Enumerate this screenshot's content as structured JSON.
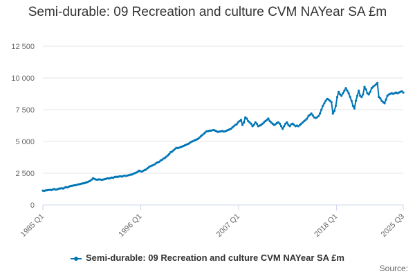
{
  "chart_data": {
    "type": "line",
    "title": "Semi-durable: 09 Recreation and culture CVM NAYear SA £m",
    "xlabel": "",
    "ylabel": "",
    "x_start": "1985 Q1",
    "x_end": "2025 Q3",
    "x_ticks": [
      "1985 Q1",
      "1996 Q1",
      "2007 Q1",
      "2018 Q1",
      "2025 Q3"
    ],
    "y_ticks": [
      "0",
      "2 500",
      "5 000",
      "7 500",
      "10 000",
      "12 500"
    ],
    "ylim": [
      0,
      12500
    ],
    "grid": true,
    "legend_position": "bottom",
    "series": [
      {
        "name": "Semi-durable: 09 Recreation and culture CVM NAYear SA £m",
        "color": "#0076b6",
        "values": [
          1130,
          1110,
          1150,
          1160,
          1180,
          1200,
          1170,
          1220,
          1250,
          1200,
          1230,
          1270,
          1300,
          1320,
          1290,
          1350,
          1400,
          1380,
          1430,
          1480,
          1500,
          1520,
          1550,
          1560,
          1600,
          1620,
          1650,
          1680,
          1700,
          1720,
          1760,
          1800,
          1850,
          1900,
          2000,
          2100,
          2050,
          2000,
          1980,
          2020,
          2000,
          1980,
          2000,
          2030,
          2050,
          2100,
          2080,
          2120,
          2150,
          2130,
          2200,
          2220,
          2200,
          2240,
          2260,
          2230,
          2280,
          2300,
          2280,
          2320,
          2350,
          2380,
          2400,
          2450,
          2500,
          2550,
          2600,
          2700,
          2650,
          2620,
          2700,
          2750,
          2800,
          2900,
          3000,
          3050,
          3100,
          3150,
          3200,
          3300,
          3350,
          3400,
          3500,
          3550,
          3650,
          3700,
          3800,
          3900,
          4000,
          4150,
          4200,
          4300,
          4400,
          4500,
          4480,
          4520,
          4550,
          4600,
          4650,
          4700,
          4750,
          4800,
          4850,
          4950,
          5000,
          5050,
          5100,
          5150,
          5200,
          5300,
          5400,
          5500,
          5600,
          5700,
          5800,
          5800,
          5850,
          5850,
          5880,
          5900,
          5850,
          5800,
          5750,
          5780,
          5800,
          5820,
          5780,
          5800,
          5850,
          5900,
          5950,
          6000,
          6100,
          6200,
          6300,
          6350,
          6500,
          6600,
          6700,
          6300,
          6500,
          6900,
          6800,
          6600,
          6500,
          6400,
          6200,
          6300,
          6500,
          6400,
          6200,
          6250,
          6300,
          6400,
          6500,
          6600,
          6700,
          6800,
          6600,
          6500,
          6400,
          6300,
          6350,
          6450,
          6500,
          6400,
          6200,
          6000,
          6200,
          6400,
          6500,
          6300,
          6200,
          6350,
          6400,
          6300,
          6200,
          6250,
          6200,
          6300,
          6400,
          6500,
          6600,
          6700,
          6800,
          7000,
          7100,
          7200,
          7050,
          6900,
          6850,
          6900,
          7000,
          7200,
          7500,
          7800,
          8000,
          8200,
          8350,
          8300,
          8200,
          8100,
          7200,
          7400,
          7800,
          8500,
          8900,
          8700,
          8600,
          8800,
          9000,
          9200,
          9000,
          8800,
          8500,
          8200,
          7800,
          7600,
          8200,
          8600,
          9000,
          8600,
          8500,
          8700,
          9300,
          9100,
          8800,
          8700,
          8900,
          9200,
          9300,
          9400,
          9500,
          9600,
          8500,
          8400,
          8200,
          8100,
          8000,
          8300,
          8600,
          8700,
          8750,
          8800,
          8750,
          8800,
          8850,
          8800,
          8850,
          8900,
          8950,
          8850
        ]
      }
    ]
  },
  "legend": {
    "label": "Semi-durable: 09 Recreation and culture CVM NAYear SA £m"
  },
  "credit": {
    "label": "Source:"
  }
}
